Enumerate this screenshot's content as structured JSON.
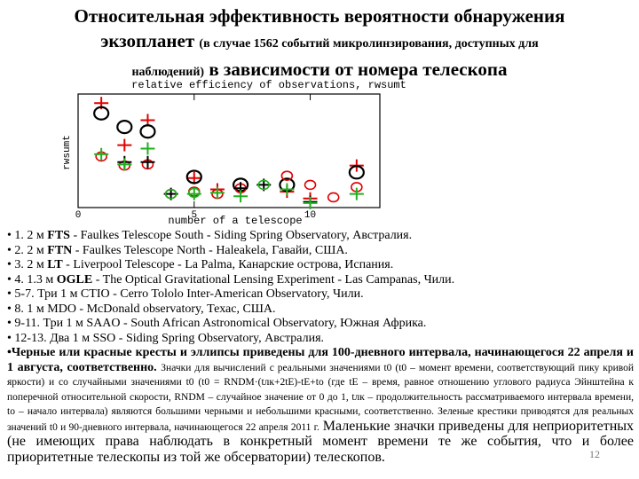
{
  "title": {
    "line1": "Относительная эффективность вероятности обнаружения",
    "line2_big": "экзопланет",
    "line2_small": "(в случае 1562 событий микролинзирования, доступных для",
    "line3_small": "наблюдений)",
    "line3_big": "в зависимости от номера телескопа"
  },
  "chart_data": {
    "type": "scatter",
    "title": "relative efficiency of observations, rwsumt",
    "xlabel": "number of a telescope",
    "ylabel": "rwsumt",
    "xlim": [
      0,
      13
    ],
    "ylim": [
      0,
      1
    ],
    "xticks": [
      0,
      5,
      10
    ],
    "grid": false,
    "series": [
      {
        "marker": "red-plus",
        "color": "#e00000",
        "points": [
          [
            1,
            0.92
          ],
          [
            2,
            0.55
          ],
          [
            3,
            0.77
          ],
          [
            5,
            0.26
          ],
          [
            6,
            0.16
          ],
          [
            9,
            0.14
          ],
          [
            10,
            0.08
          ],
          [
            12,
            0.37
          ]
        ]
      },
      {
        "marker": "black-ellipse",
        "color": "#000000",
        "points": [
          [
            1,
            0.83
          ],
          [
            2,
            0.71
          ],
          [
            3,
            0.67
          ],
          [
            5,
            0.27
          ],
          [
            7,
            0.2
          ],
          [
            9,
            0.2
          ],
          [
            12,
            0.31
          ]
        ]
      },
      {
        "marker": "red-ellipse",
        "color": "#e00000",
        "points": [
          [
            1,
            0.45
          ],
          [
            2,
            0.37
          ],
          [
            3,
            0.38
          ],
          [
            4,
            0.12
          ],
          [
            5,
            0.14
          ],
          [
            6,
            0.12
          ],
          [
            7,
            0.17
          ],
          [
            9,
            0.28
          ],
          [
            10,
            0.2
          ],
          [
            11,
            0.09
          ],
          [
            12,
            0.18
          ]
        ]
      },
      {
        "marker": "black-plus",
        "color": "#000000",
        "points": [
          [
            2,
            0.4
          ],
          [
            3,
            0.4
          ],
          [
            4,
            0.12
          ],
          [
            7,
            0.17
          ],
          [
            8,
            0.2
          ],
          [
            10,
            0.05
          ]
        ]
      },
      {
        "marker": "green-plus",
        "color": "#20b020",
        "points": [
          [
            1,
            0.47
          ],
          [
            2,
            0.38
          ],
          [
            3,
            0.52
          ],
          [
            5,
            0.12
          ],
          [
            6,
            0.13
          ],
          [
            7,
            0.1
          ],
          [
            9,
            0.16
          ],
          [
            10,
            0.04
          ],
          [
            12,
            0.12
          ]
        ]
      },
      {
        "marker": "green-ellipse",
        "color": "#20b020",
        "points": [
          [
            4,
            0.12
          ],
          [
            5,
            0.13
          ],
          [
            8,
            0.2
          ]
        ]
      }
    ]
  },
  "items": [
    {
      "prefix": "• 1.  2 м ",
      "bold": "FTS",
      "rest": " - Faulkes Telescope South - Siding Spring Observatory, Австралия."
    },
    {
      "prefix": "• 2.  2 м ",
      "bold": "FTN",
      "rest": " - Faulkes Telescope North - Haleakela, Гавайи, США."
    },
    {
      "prefix": "• 3.  2 м ",
      "bold": "LT",
      "rest": " - Liverpool Telescope - La Palma, Канарские острова, Испания."
    },
    {
      "prefix": "• 4.  1.3 м ",
      "bold": "OGLE",
      "rest": " - The Optical Gravitational Lensing Experiment - Las Campanas, Чили."
    },
    {
      "prefix": "• 5-7. Три 1 м CTIO - Cerro Tololo Inter-American Observatory, Чили.",
      "bold": "",
      "rest": ""
    },
    {
      "prefix": "• 8.  1 м MDO - McDonald observatory, Техас, США.",
      "bold": "",
      "rest": ""
    },
    {
      "prefix": "• 9-11. Три 1 м SAAO - South African Astronomical Observatory, Южная Африка.",
      "bold": "",
      "rest": ""
    },
    {
      "prefix": "• 12-13. Два 1 м SSO - Siding Spring Observatory, Австралия.",
      "bold": "",
      "rest": ""
    }
  ],
  "note": {
    "lead": "•Черные или красные кресты и эллипсы приведены для 100-дневного интервала, начинающегося 22 апреля и 1 августа, соответственно.",
    "small": "Значки для вычислений с реальными значениями t0 (t0 – момент времени, соответствующий пику кривой яркости) и со случайными значениями t0 (t0 = RNDM·(tлк+2tE)-tE+to (где tE – время, равное отношению углового радиуса Эйнштейна к поперечной относительной скорости, RNDM – случайное значение от 0 до 1, tлк – продолжительность рассматриваемого интервала времени, to – начало интервала) являются большими черными и небольшими красными, соответственно. Зеленые крестики приводятся для реальных значений t0 и 90-дневного интервала, начинающегося 22 апреля 2011 г.",
    "big": "Маленькие значки приведены для неприоритетных (не имеющих права наблюдать в конкретный момент времени те же события, что и более приоритетные телескопы из той же обсерватории) телескопов."
  },
  "page_number": "12"
}
